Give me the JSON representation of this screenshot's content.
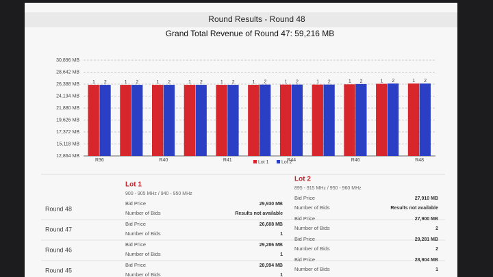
{
  "chart_data": {
    "type": "bar",
    "title": "Round Results - Round 48",
    "subtitle": "Grand Total Revenue of Round 47: 59,216 MB",
    "categories": [
      "R36",
      null,
      "R40",
      null,
      "R41",
      null,
      "R44",
      null,
      "R46",
      null,
      "R48"
    ],
    "series": [
      {
        "name": "Lot 1",
        "color": "#d7262c",
        "label": "1",
        "values": [
          26250,
          26250,
          26250,
          26250,
          26250,
          26250,
          26300,
          26300,
          26350,
          26450,
          26500
        ]
      },
      {
        "name": "Lot 2",
        "color": "#2a3fc4",
        "label": "2",
        "values": [
          26250,
          26250,
          26250,
          26250,
          26250,
          26300,
          26300,
          26300,
          26400,
          26500,
          26500
        ]
      }
    ],
    "ylim": [
      12864,
      30896
    ],
    "yticks": [
      {
        "value": 12864,
        "label": "12,864 MB"
      },
      {
        "value": 15118,
        "label": "15,118 MB"
      },
      {
        "value": 17372,
        "label": "17,372 MB"
      },
      {
        "value": 19626,
        "label": "19,626 MB"
      },
      {
        "value": 21880,
        "label": "21,880 MB"
      },
      {
        "value": 24134,
        "label": "24,134 MB"
      },
      {
        "value": 26388,
        "label": "26,388 MB"
      },
      {
        "value": 28642,
        "label": "28,642 MB"
      },
      {
        "value": 30896,
        "label": "30,896 MB"
      }
    ],
    "grid": true,
    "legend": "bottom"
  },
  "table": {
    "lots": [
      {
        "title": "Lot 1",
        "band": "900 - 905 MHz / 940 - 950 MHz"
      },
      {
        "title": "Lot 2",
        "band": "895 - 915 MHz / 950 - 960 MHz"
      }
    ],
    "rows": [
      {
        "round": "Round 48",
        "cells": [
          [
            [
              "Bid Price",
              "29,930 MB"
            ],
            [
              "Number of Bids",
              "Results not available"
            ]
          ],
          [
            [
              "Bid Price",
              "27,910 MB"
            ],
            [
              "Number of Bids",
              "Results not available"
            ]
          ]
        ]
      },
      {
        "round": "Round 47",
        "cells": [
          [
            [
              "Bid Price",
              "26,608 MB"
            ],
            [
              "Number of Bids",
              "1"
            ]
          ],
          [
            [
              "Bid Price",
              "27,900 MB"
            ],
            [
              "Number of Bids",
              "2"
            ]
          ]
        ]
      },
      {
        "round": "Round 46",
        "cells": [
          [
            [
              "Bid Price",
              "29,286 MB"
            ],
            [
              "Number of Bids",
              "1"
            ]
          ],
          [
            [
              "Bid Price",
              "29,281 MB"
            ],
            [
              "Number of Bids",
              "2"
            ]
          ]
        ]
      },
      {
        "round": "Round 45",
        "cells": [
          [
            [
              "Bid Price",
              "28,994 MB"
            ],
            [
              "Number of Bids",
              "1"
            ]
          ],
          [
            [
              "Bid Price",
              "28,904 MB"
            ],
            [
              "Number of Bids",
              "1"
            ]
          ]
        ]
      }
    ]
  }
}
